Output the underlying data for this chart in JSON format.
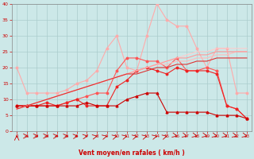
{
  "xlabel": "Vent moyen/en rafales ( km/h )",
  "background_color": "#cce8e8",
  "grid_color": "#aacccc",
  "xlim": [
    -0.5,
    23.5
  ],
  "ylim": [
    0,
    40
  ],
  "yticks": [
    0,
    5,
    10,
    15,
    20,
    25,
    30,
    35,
    40
  ],
  "xticks": [
    0,
    1,
    2,
    3,
    4,
    5,
    6,
    7,
    8,
    9,
    10,
    11,
    12,
    13,
    14,
    15,
    16,
    17,
    18,
    19,
    20,
    21,
    22,
    23
  ],
  "series": [
    {
      "color": "#ffaaaa",
      "linewidth": 0.8,
      "marker": "o",
      "markersize": 1.8,
      "data_x": [
        0,
        1,
        2,
        3,
        4,
        5,
        6,
        7,
        8,
        9,
        10,
        11,
        12,
        13,
        14,
        15,
        16,
        17,
        18,
        19,
        20,
        21,
        22,
        23
      ],
      "data_y": [
        20,
        12,
        12,
        12,
        12,
        13,
        15,
        16,
        19,
        26,
        30,
        20,
        19,
        30,
        40,
        35,
        33,
        33,
        26,
        20,
        26,
        26,
        12,
        12
      ]
    },
    {
      "color": "#ff5555",
      "linewidth": 0.8,
      "marker": "o",
      "markersize": 1.8,
      "data_x": [
        0,
        1,
        2,
        3,
        4,
        5,
        6,
        7,
        8,
        9,
        10,
        11,
        12,
        13,
        14,
        15,
        16,
        17,
        18,
        19,
        20,
        21,
        22,
        23
      ],
      "data_y": [
        8,
        8,
        8,
        8,
        8,
        9,
        10,
        11,
        12,
        12,
        19,
        23,
        23,
        22,
        22,
        20,
        23,
        19,
        19,
        20,
        19,
        8,
        7,
        4
      ]
    },
    {
      "color": "#ee2222",
      "linewidth": 0.8,
      "marker": "o",
      "markersize": 1.8,
      "data_x": [
        0,
        1,
        2,
        3,
        4,
        5,
        6,
        7,
        8,
        9,
        10,
        11,
        12,
        13,
        14,
        15,
        16,
        17,
        18,
        19,
        20,
        21,
        22,
        23
      ],
      "data_y": [
        8,
        8,
        8,
        9,
        8,
        9,
        10,
        8,
        8,
        8,
        14,
        16,
        19,
        20,
        19,
        18,
        20,
        19,
        19,
        19,
        18,
        8,
        7,
        4
      ]
    },
    {
      "color": "#cc0000",
      "linewidth": 0.8,
      "marker": "^",
      "markersize": 2.0,
      "data_x": [
        0,
        1,
        2,
        3,
        4,
        5,
        6,
        7,
        8,
        9,
        10,
        11,
        12,
        13,
        14,
        15,
        16,
        17,
        18,
        19,
        20,
        21,
        22,
        23
      ],
      "data_y": [
        8,
        8,
        8,
        8,
        8,
        8,
        8,
        9,
        8,
        8,
        8,
        10,
        11,
        12,
        12,
        6,
        6,
        6,
        6,
        6,
        5,
        5,
        5,
        4
      ]
    },
    {
      "color": "#ffbbbb",
      "linewidth": 0.8,
      "marker": null,
      "markersize": 0,
      "data_x": [
        0,
        1,
        2,
        3,
        4,
        5,
        6,
        7,
        8,
        9,
        10,
        11,
        12,
        13,
        14,
        15,
        16,
        17,
        18,
        19,
        20,
        21,
        22,
        23
      ],
      "data_y": [
        7,
        8,
        9,
        10,
        11,
        12,
        13,
        14,
        15,
        16,
        17,
        18,
        19,
        20,
        21,
        21,
        22,
        22,
        23,
        23,
        24,
        24,
        25,
        25
      ]
    },
    {
      "color": "#ffcccc",
      "linewidth": 0.8,
      "marker": null,
      "markersize": 0,
      "data_x": [
        0,
        1,
        2,
        3,
        4,
        5,
        6,
        7,
        8,
        9,
        10,
        11,
        12,
        13,
        14,
        15,
        16,
        17,
        18,
        19,
        20,
        21,
        22,
        23
      ],
      "data_y": [
        7,
        8,
        9,
        10,
        11,
        12,
        13,
        14,
        15,
        16,
        17,
        18,
        19,
        20,
        21,
        22,
        23,
        24,
        25,
        25,
        26,
        26,
        26,
        26
      ]
    },
    {
      "color": "#ff9999",
      "linewidth": 0.8,
      "marker": null,
      "markersize": 0,
      "data_x": [
        0,
        1,
        2,
        3,
        4,
        5,
        6,
        7,
        8,
        9,
        10,
        11,
        12,
        13,
        14,
        15,
        16,
        17,
        18,
        19,
        20,
        21,
        22,
        23
      ],
      "data_y": [
        7,
        8,
        9,
        10,
        11,
        12,
        13,
        14,
        15,
        16,
        17,
        18,
        19,
        20,
        21,
        22,
        23,
        23,
        24,
        24,
        25,
        25,
        25,
        25
      ]
    },
    {
      "color": "#dd3333",
      "linewidth": 0.8,
      "marker": null,
      "markersize": 0,
      "data_x": [
        0,
        1,
        2,
        3,
        4,
        5,
        6,
        7,
        8,
        9,
        10,
        11,
        12,
        13,
        14,
        15,
        16,
        17,
        18,
        19,
        20,
        21,
        22,
        23
      ],
      "data_y": [
        7,
        8,
        9,
        10,
        11,
        12,
        13,
        14,
        15,
        16,
        17,
        18,
        18,
        19,
        20,
        20,
        21,
        21,
        22,
        22,
        23,
        23,
        23,
        23
      ]
    }
  ],
  "arrow_angles_deg": [
    90,
    0,
    0,
    0,
    10,
    10,
    20,
    30,
    40,
    45,
    45,
    45,
    45,
    45,
    45,
    45,
    315,
    315,
    315,
    315,
    315,
    315,
    315,
    315
  ],
  "arrow_color": "#cc0000"
}
